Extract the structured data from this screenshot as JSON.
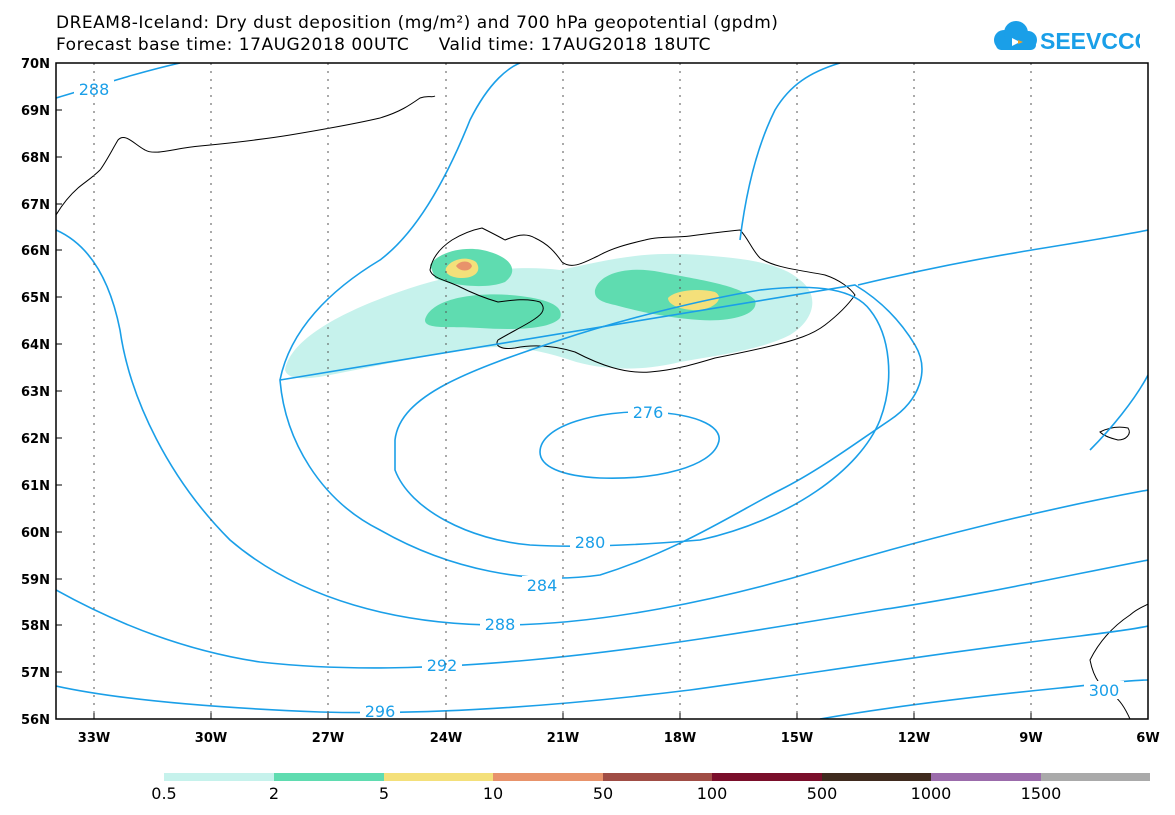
{
  "title_line1": "DREAM8-Iceland: Dry dust deposition (mg/m²) and 700 hPa geopotential (gpdm)",
  "title_line2": "Forecast base time: 17AUG2018 00UTC     Valid time: 17AUG2018 18UTC",
  "logo_text": "SEEVCCC",
  "colors": {
    "contour": "#1a9fe8",
    "bins": [
      "#c6f2ec",
      "#5fdcb0",
      "#f4e07a",
      "#e8936b",
      "#a04d45",
      "#7a0e2a",
      "#3f2a1e",
      "#9b6bab",
      "#aaaaaa"
    ]
  },
  "lat_labels": [
    "70N",
    "69N",
    "68N",
    "67N",
    "66N",
    "65N",
    "64N",
    "63N",
    "62N",
    "61N",
    "60N",
    "59N",
    "58N",
    "57N",
    "56N"
  ],
  "lon_labels": [
    "33W",
    "30W",
    "27W",
    "24W",
    "21W",
    "18W",
    "15W",
    "12W",
    "9W",
    "6W"
  ],
  "contour_labels": [
    "288",
    "276",
    "280",
    "284",
    "288",
    "292",
    "296",
    "300"
  ],
  "colorbar_ticks": [
    "0.5",
    "2",
    "5",
    "10",
    "50",
    "100",
    "500",
    "1000",
    "1500"
  ]
}
